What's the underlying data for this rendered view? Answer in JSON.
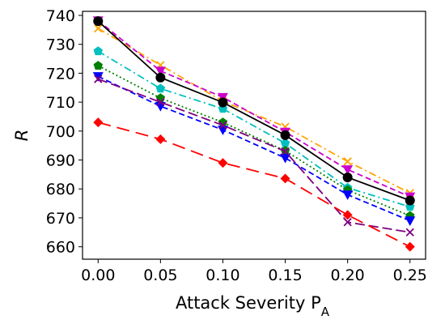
{
  "chart_data": {
    "type": "line",
    "xlabel": "Attack Severity P",
    "xlabel_sub": "A",
    "ylabel": "R",
    "xlim": [
      -0.0125,
      0.2625
    ],
    "ylim": [
      655.7,
      741.4
    ],
    "xticks": [
      "0.00",
      "0.05",
      "0.10",
      "0.15",
      "0.20",
      "0.25"
    ],
    "yticks": [
      "660",
      "670",
      "680",
      "690",
      "700",
      "710",
      "720",
      "730",
      "740"
    ],
    "grid": false,
    "x": [
      0.0,
      0.05,
      0.1,
      0.15,
      0.2,
      0.25
    ],
    "series": [
      {
        "color": "#ffa500",
        "marker": "x",
        "dash": "dashdot",
        "values": [
          735.5,
          722.8,
          710.3,
          701.5,
          689.5,
          678.6
        ]
      },
      {
        "color": "#cc00cc",
        "marker": "triangle-down",
        "dash": "dashed",
        "values": [
          738.2,
          720.8,
          711.7,
          699.7,
          686.7,
          677.3
        ]
      },
      {
        "color": "#00bfbf",
        "marker": "pentagon",
        "dash": "dashdot",
        "values": [
          727.6,
          714.7,
          707.7,
          695.8,
          680.4,
          673.8
        ]
      },
      {
        "color": "#000000",
        "marker": "circle",
        "dash": "solid",
        "values": [
          738.0,
          718.5,
          709.9,
          698.6,
          684.0,
          676.0
        ]
      },
      {
        "color": "#008000",
        "marker": "pentagon",
        "dash": "dotted",
        "values": [
          722.6,
          711.4,
          703.0,
          693.2,
          679.6,
          670.7
        ]
      },
      {
        "color": "#0000ff",
        "marker": "triangle-down",
        "dash": "dashed",
        "values": [
          718.9,
          708.6,
          700.4,
          690.7,
          678.0,
          669.0
        ]
      },
      {
        "color": "#800080",
        "marker": "x",
        "dash": "longdash",
        "values": [
          718.0,
          710.0,
          702.0,
          693.0,
          668.5,
          665.0
        ]
      },
      {
        "color": "#ff0000",
        "marker": "diamond",
        "dash": "longdashgap",
        "values": [
          703.0,
          697.2,
          689.0,
          683.6,
          671.0,
          660.0
        ]
      }
    ]
  }
}
